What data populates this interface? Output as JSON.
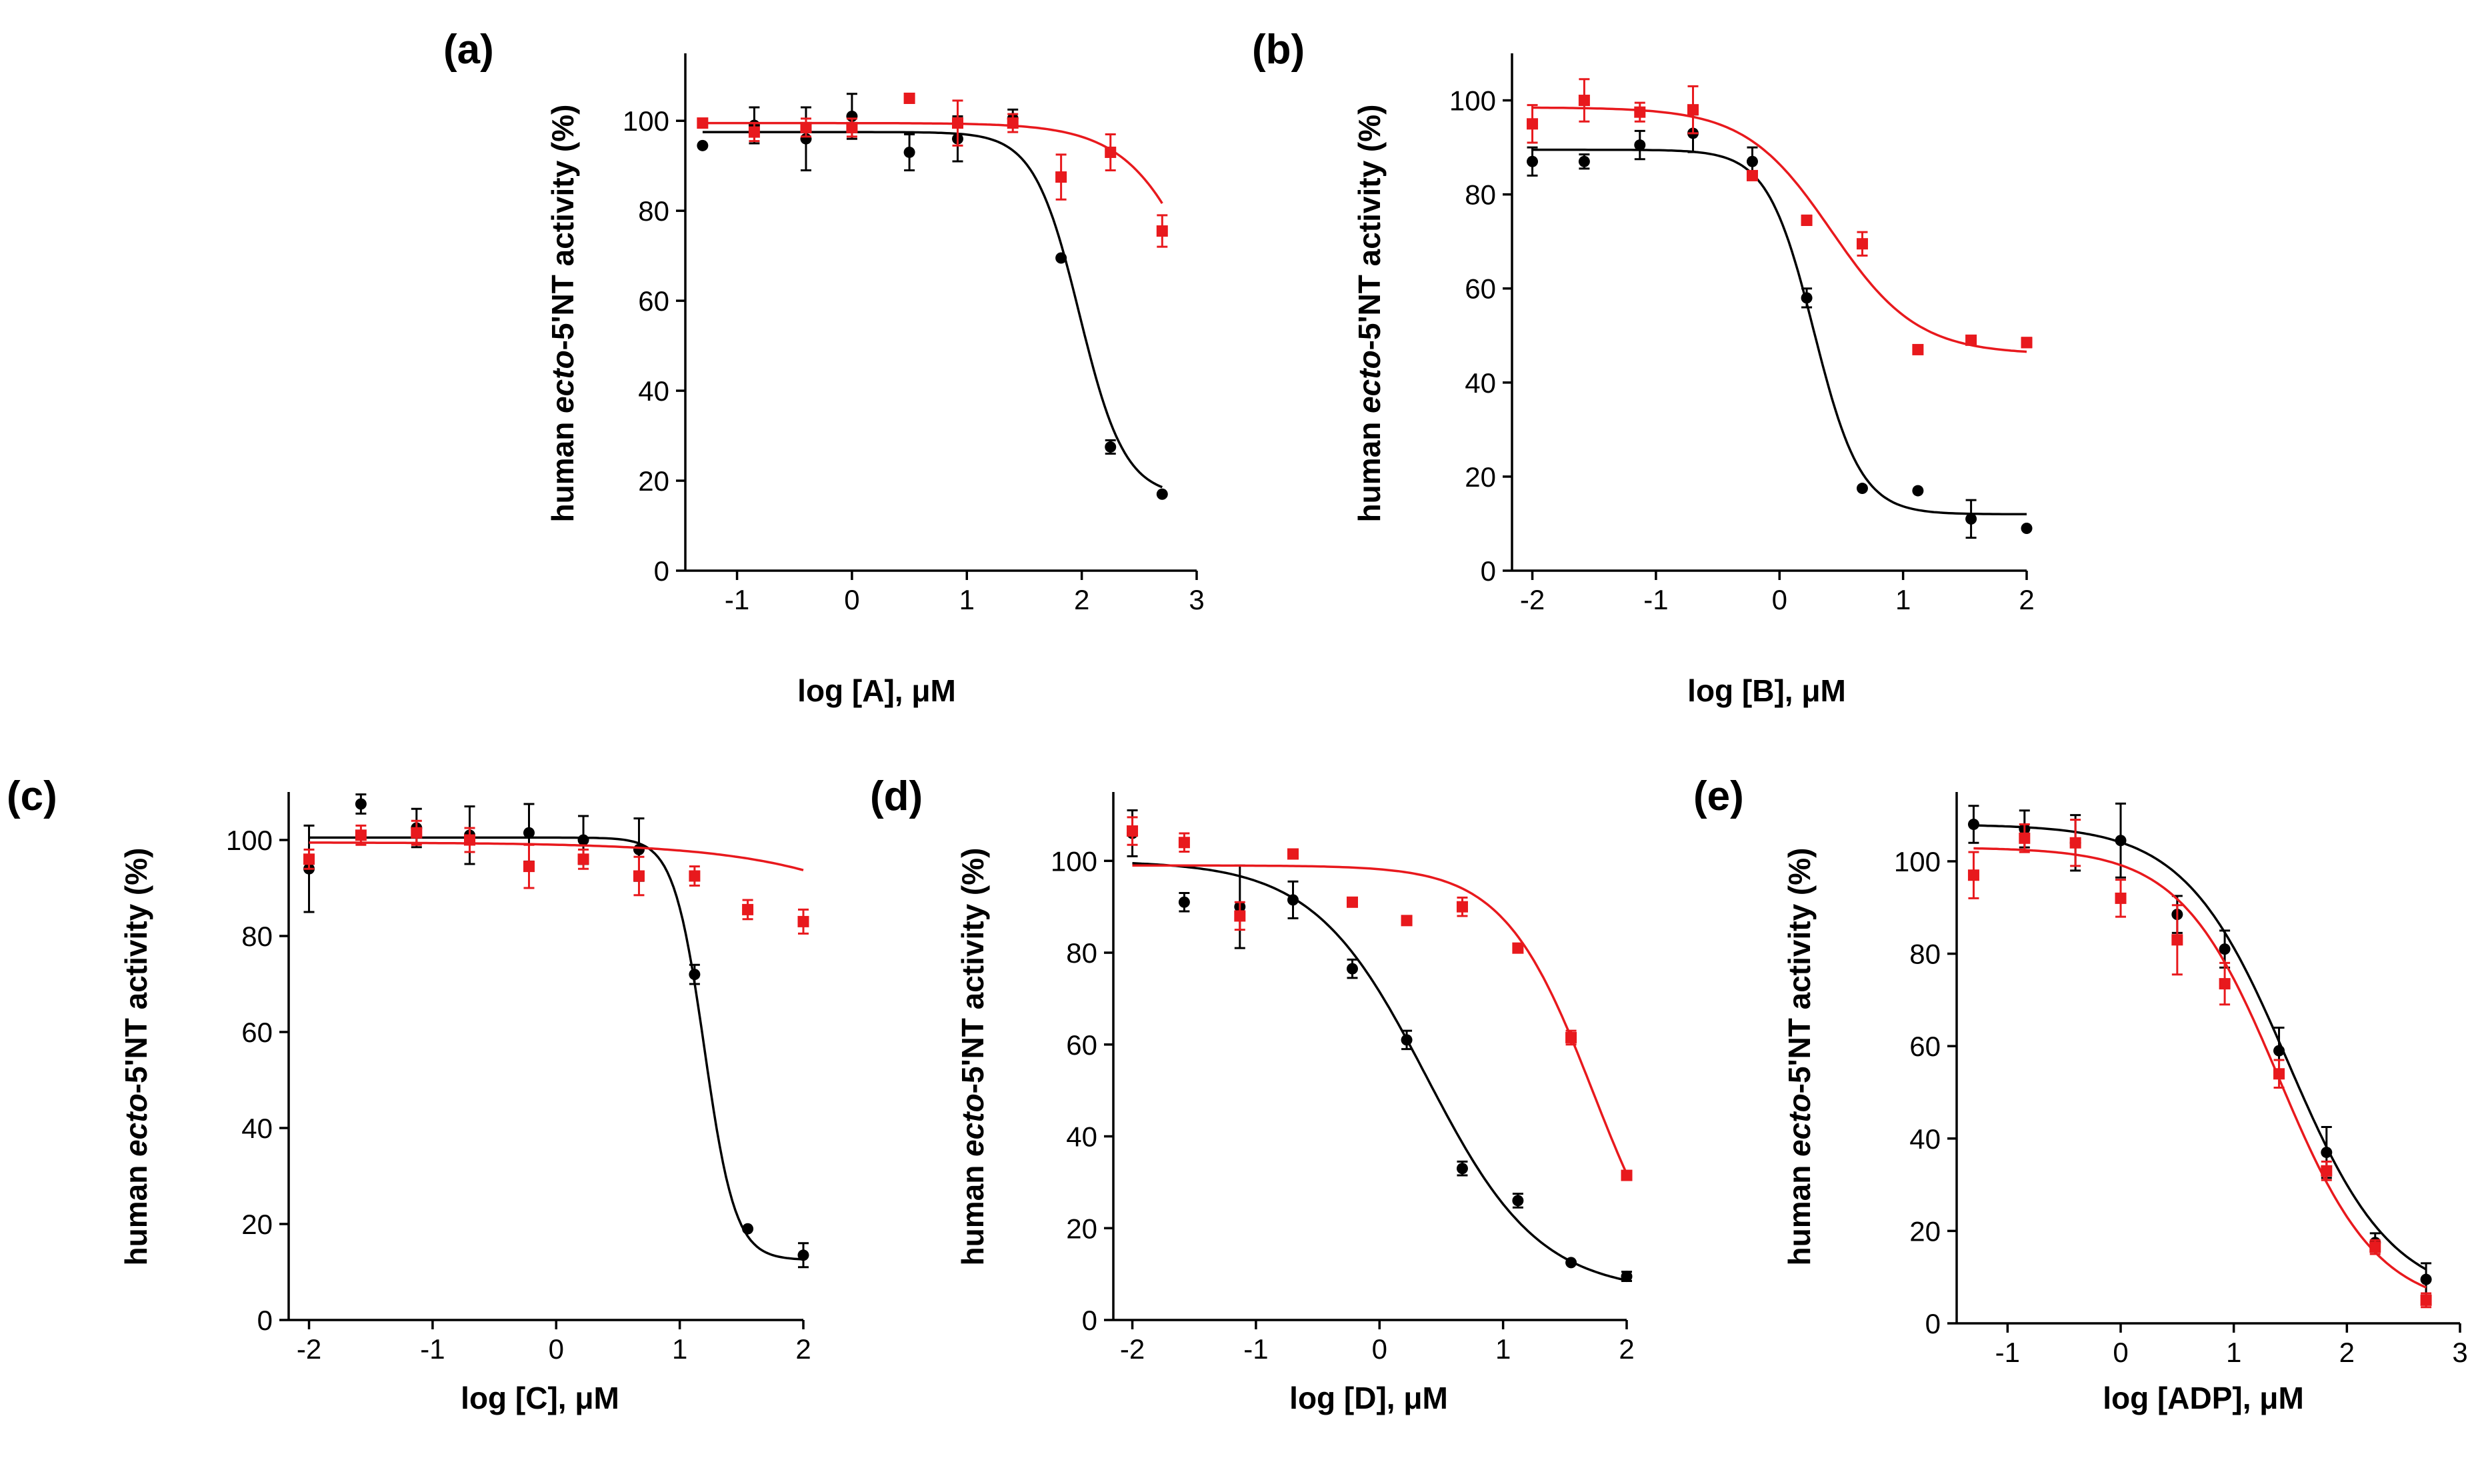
{
  "colors": {
    "black_series": "#000000",
    "red_series": "#e8191d",
    "axis": "#000000"
  },
  "chart_data": [
    {
      "panel": "(a)",
      "type": "scatter",
      "xlabel": "log [A], μM",
      "ylabel": "human ecto-5'NT activity (%)",
      "ylabel_parts": [
        "human ",
        "ecto",
        "-5'NT activity (%)"
      ],
      "xlim": [
        -1.45,
        3.0
      ],
      "ylim": [
        0,
        115
      ],
      "xticks": [
        -1,
        0,
        1,
        2,
        3
      ],
      "xtick_labels": [
        "-1",
        "0",
        "1",
        "2",
        "3"
      ],
      "yticks": [
        0,
        20,
        40,
        60,
        80,
        100
      ],
      "ytick_labels": [
        "0",
        "20",
        "40",
        "60",
        "80",
        "100"
      ],
      "series": [
        {
          "name": "black",
          "color": "#000000",
          "marker": "circle",
          "x": [
            -1.3,
            -0.85,
            -0.4,
            0.0,
            0.5,
            0.92,
            1.4,
            1.82,
            2.25,
            2.7
          ],
          "y": [
            94.5,
            99,
            96,
            101,
            93,
            96,
            100.5,
            69.5,
            27.5,
            17
          ],
          "err": [
            0,
            4,
            7,
            5,
            4,
            5,
            2,
            0,
            1.5,
            0
          ],
          "fit": {
            "top": 97.5,
            "bottom": 16.5,
            "logIC50": 1.98,
            "hill": 2.2
          }
        },
        {
          "name": "red",
          "color": "#e8191d",
          "marker": "square",
          "x": [
            -1.3,
            -0.85,
            -0.4,
            0.0,
            0.5,
            0.92,
            1.4,
            1.82,
            2.25,
            2.7
          ],
          "y": [
            99.5,
            97.5,
            98.5,
            98.5,
            105,
            99.5,
            99.5,
            87.5,
            93,
            75.5
          ],
          "err": [
            0,
            2,
            2,
            2,
            1,
            5,
            2,
            5,
            4,
            3.5
          ],
          "fit": {
            "top": 99.5,
            "bottom": 0,
            "logIC50": 3.25,
            "hill": 1.2
          }
        }
      ]
    },
    {
      "panel": "(b)",
      "type": "scatter",
      "xlabel": "log [B], μM",
      "ylabel": "human ecto-5'NT activity (%)",
      "ylabel_parts": [
        "human ",
        "ecto",
        "-5'NT activity (%)"
      ],
      "xlim": [
        -2.1,
        2.0
      ],
      "ylim": [
        0,
        110
      ],
      "xticks": [
        -2,
        -1,
        0,
        1,
        2
      ],
      "xtick_labels": [
        "-2",
        "-1",
        "0",
        "1",
        "2"
      ],
      "yticks": [
        0,
        20,
        40,
        60,
        80,
        100
      ],
      "ytick_labels": [
        "0",
        "20",
        "40",
        "60",
        "80",
        "100"
      ],
      "series": [
        {
          "name": "black",
          "color": "#000000",
          "marker": "circle",
          "x": [
            -2.0,
            -1.58,
            -1.13,
            -0.7,
            -0.22,
            0.22,
            0.67,
            1.12,
            1.55,
            2.0
          ],
          "y": [
            87,
            87,
            90.5,
            93,
            87,
            58,
            17.5,
            17,
            11,
            9
          ],
          "err": [
            3,
            1.5,
            3,
            4,
            3,
            2,
            0,
            0,
            4,
            0
          ],
          "fit": {
            "top": 89.5,
            "bottom": 12.0,
            "logIC50": 0.28,
            "hill": 2.3
          }
        },
        {
          "name": "red",
          "color": "#e8191d",
          "marker": "square",
          "x": [
            -2.0,
            -1.58,
            -1.13,
            -0.7,
            -0.22,
            0.22,
            0.67,
            1.12,
            1.55,
            2.0
          ],
          "y": [
            95,
            100,
            97.5,
            98,
            84,
            74.5,
            69.5,
            47,
            49,
            48.5
          ],
          "err": [
            4,
            4.5,
            2,
            5,
            0,
            1,
            2.5,
            0,
            0,
            1
          ],
          "fit": {
            "top": 98.5,
            "bottom": 46.0,
            "logIC50": 0.42,
            "hill": 1.25
          }
        }
      ]
    },
    {
      "panel": "(c)",
      "type": "scatter",
      "xlabel": "log [C], μM",
      "ylabel": "human ecto-5'NT activity (%)",
      "ylabel_parts": [
        "human ",
        "ecto",
        "-5'NT activity (%)"
      ],
      "xlim": [
        -2.1,
        2.0
      ],
      "ylim": [
        0,
        110
      ],
      "xticks": [
        -2,
        -1,
        0,
        1,
        2
      ],
      "xtick_labels": [
        "-2",
        "-1",
        "0",
        "1",
        "2"
      ],
      "yticks": [
        0,
        20,
        40,
        60,
        80,
        100
      ],
      "ytick_labels": [
        "0",
        "20",
        "40",
        "60",
        "80",
        "100"
      ],
      "series": [
        {
          "name": "black",
          "color": "#000000",
          "marker": "circle",
          "x": [
            -2.0,
            -1.58,
            -1.13,
            -0.7,
            -0.22,
            0.22,
            0.67,
            1.12,
            1.55,
            2.0
          ],
          "y": [
            94,
            107.5,
            102.5,
            101,
            101.5,
            100,
            98,
            72,
            19,
            13.5
          ],
          "err": [
            9,
            2,
            4,
            6,
            6,
            5,
            6.5,
            2,
            0,
            2.5
          ],
          "fit": {
            "top": 100.5,
            "bottom": 12.5,
            "logIC50": 1.2,
            "hill": 3.5
          }
        },
        {
          "name": "red",
          "color": "#e8191d",
          "marker": "square",
          "x": [
            -2.0,
            -1.58,
            -1.13,
            -0.7,
            -0.22,
            0.22,
            0.67,
            1.12,
            1.55,
            2.0
          ],
          "y": [
            96,
            101,
            101.5,
            100,
            94.5,
            96,
            92.5,
            92.5,
            85.5,
            83
          ],
          "err": [
            2,
            2,
            2.5,
            2.5,
            4.5,
            2,
            4,
            2,
            2,
            2.5
          ],
          "fit": {
            "top": 99.5,
            "bottom": 0,
            "logIC50": 4.2,
            "hill": 0.55
          }
        }
      ]
    },
    {
      "panel": "(d)",
      "type": "scatter",
      "xlabel": "log [D], μM",
      "ylabel": "human ecto-5'NT activity (%)",
      "ylabel_parts": [
        "human ",
        "ecto",
        "-5'NT activity (%)"
      ],
      "xlim": [
        -2.1,
        2.0
      ],
      "ylim": [
        0,
        115
      ],
      "xticks": [
        -2,
        -1,
        0,
        1,
        2
      ],
      "xtick_labels": [
        "-2",
        "-1",
        "0",
        "1",
        "2"
      ],
      "yticks": [
        0,
        20,
        40,
        60,
        80,
        100
      ],
      "ytick_labels": [
        "0",
        "20",
        "40",
        "60",
        "80",
        "100"
      ],
      "series": [
        {
          "name": "black",
          "color": "#000000",
          "marker": "circle",
          "x": [
            -2.0,
            -1.58,
            -1.13,
            -0.7,
            -0.22,
            0.22,
            0.67,
            1.12,
            1.55,
            2.0
          ],
          "y": [
            106,
            91,
            90,
            91.5,
            76.5,
            61,
            33,
            26,
            12.5,
            9.5
          ],
          "err": [
            5,
            2,
            9,
            4,
            2,
            2,
            1.5,
            1.5,
            0,
            1
          ],
          "fit": {
            "top": 100,
            "bottom": 6,
            "logIC50": 0.38,
            "hill": 0.95
          }
        },
        {
          "name": "red",
          "color": "#e8191d",
          "marker": "square",
          "x": [
            -2.0,
            -1.58,
            -1.13,
            -0.7,
            -0.22,
            0.22,
            0.67,
            1.12,
            1.55,
            2.0
          ],
          "y": [
            106.5,
            104,
            88,
            101.5,
            91,
            87,
            90,
            81,
            61.5,
            31.5
          ],
          "err": [
            3,
            2,
            3,
            0,
            0,
            0,
            2,
            0,
            1.5,
            0
          ],
          "fit": {
            "top": 99,
            "bottom": 0,
            "logIC50": 1.73,
            "hill": 1.2
          }
        }
      ]
    },
    {
      "panel": "(e)",
      "type": "scatter",
      "xlabel": "log [ADP], μM",
      "ylabel": "human ecto-5'NT activity (%)",
      "ylabel_parts": [
        "human ",
        "ecto",
        "-5'NT activity (%)"
      ],
      "xlim": [
        -1.45,
        3.0
      ],
      "ylim": [
        0,
        115
      ],
      "xticks": [
        -1,
        0,
        1,
        2,
        3
      ],
      "xtick_labels": [
        "-1",
        "0",
        "1",
        "2",
        "3"
      ],
      "yticks": [
        0,
        20,
        40,
        60,
        80,
        100
      ],
      "ytick_labels": [
        "0",
        "20",
        "40",
        "60",
        "80",
        "100"
      ],
      "series": [
        {
          "name": "black",
          "color": "#000000",
          "marker": "circle",
          "x": [
            -1.3,
            -0.85,
            -0.4,
            0.0,
            0.5,
            0.92,
            1.4,
            1.82,
            2.25,
            2.7
          ],
          "y": [
            108,
            107,
            104,
            104.5,
            88.5,
            81,
            59,
            37,
            17.5,
            9.5
          ],
          "err": [
            4,
            4,
            6,
            8,
            4,
            4,
            5,
            5.5,
            2,
            3.5
          ],
          "fit": {
            "top": 108,
            "bottom": 5,
            "logIC50": 1.48,
            "hill": 0.95
          }
        },
        {
          "name": "red",
          "color": "#e8191d",
          "marker": "square",
          "x": [
            -1.3,
            -0.85,
            -0.4,
            0.0,
            0.5,
            0.92,
            1.4,
            1.82,
            2.25,
            2.7
          ],
          "y": [
            97,
            105,
            104,
            92,
            83,
            73.5,
            54,
            33,
            16.5,
            5
          ],
          "err": [
            5,
            3,
            5,
            4,
            7.5,
            4.5,
            3,
            2,
            1.5,
            1.5
          ],
          "fit": {
            "top": 103,
            "bottom": 3,
            "logIC50": 1.4,
            "hill": 1.0
          }
        }
      ]
    }
  ]
}
